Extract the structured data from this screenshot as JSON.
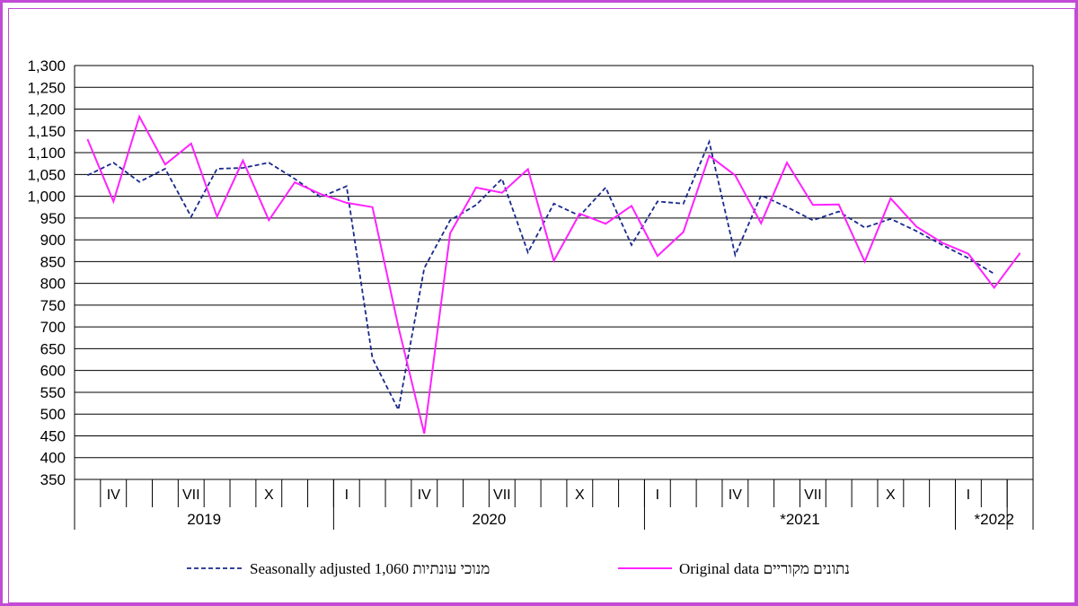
{
  "chart_data": {
    "type": "line",
    "title": "",
    "xlabel": "",
    "ylabel": "",
    "ylim": [
      350,
      1300
    ],
    "yticks": [
      350,
      400,
      450,
      500,
      550,
      600,
      650,
      700,
      750,
      800,
      850,
      900,
      950,
      1000,
      1050,
      1100,
      1150,
      1200,
      1250,
      1300
    ],
    "ytick_labels": [
      "350",
      "400",
      "450",
      "500",
      "550",
      "600",
      "650",
      "700",
      "750",
      "800",
      "850",
      "900",
      "950",
      "1,000",
      "1,050",
      "1,100",
      "1,150",
      "1,200",
      "1,250",
      "1,300"
    ],
    "grid": true,
    "legend_position": "bottom",
    "month_labels": [
      {
        "label": "IV",
        "index": 1
      },
      {
        "label": "VII",
        "index": 4
      },
      {
        "label": "X",
        "index": 7
      },
      {
        "label": "I",
        "index": 10
      },
      {
        "label": "IV",
        "index": 13
      },
      {
        "label": "VII",
        "index": 16
      },
      {
        "label": "X",
        "index": 19
      },
      {
        "label": "I",
        "index": 22
      },
      {
        "label": "IV",
        "index": 25
      },
      {
        "label": "VII",
        "index": 28
      },
      {
        "label": "X",
        "index": 31
      },
      {
        "label": "I",
        "index": 34
      }
    ],
    "year_labels": [
      {
        "label": "2019",
        "start": 0,
        "end": 9
      },
      {
        "label": "2020",
        "start": 10,
        "end": 21
      },
      {
        "label": "*2021",
        "start": 22,
        "end": 33
      },
      {
        "label": "*2022",
        "start": 34,
        "end": 36
      }
    ],
    "series": [
      {
        "name": "Seasonally adjusted 1,060   מנוכי עונתיות",
        "style": "dashed",
        "color": "#1a2a8c",
        "values": [
          1048,
          1077,
          1033,
          1063,
          953,
          1063,
          1065,
          1077,
          1040,
          998,
          1023,
          628,
          510,
          835,
          945,
          980,
          1040,
          871,
          983,
          955,
          1020,
          888,
          988,
          983,
          1125,
          865,
          1002,
          975,
          945,
          965,
          928,
          948,
          920,
          888,
          858,
          822,
          null
        ]
      },
      {
        "name": "Original data נתונים מקוריים",
        "style": "solid",
        "color": "#ff22ff",
        "values": [
          1131,
          988,
          1183,
          1073,
          1121,
          953,
          1082,
          945,
          1032,
          1005,
          985,
          975,
          700,
          455,
          915,
          1020,
          1008,
          1062,
          852,
          960,
          937,
          978,
          863,
          918,
          1093,
          1048,
          938,
          1077,
          980,
          981,
          850,
          995,
          930,
          893,
          868,
          790,
          870
        ]
      }
    ]
  }
}
